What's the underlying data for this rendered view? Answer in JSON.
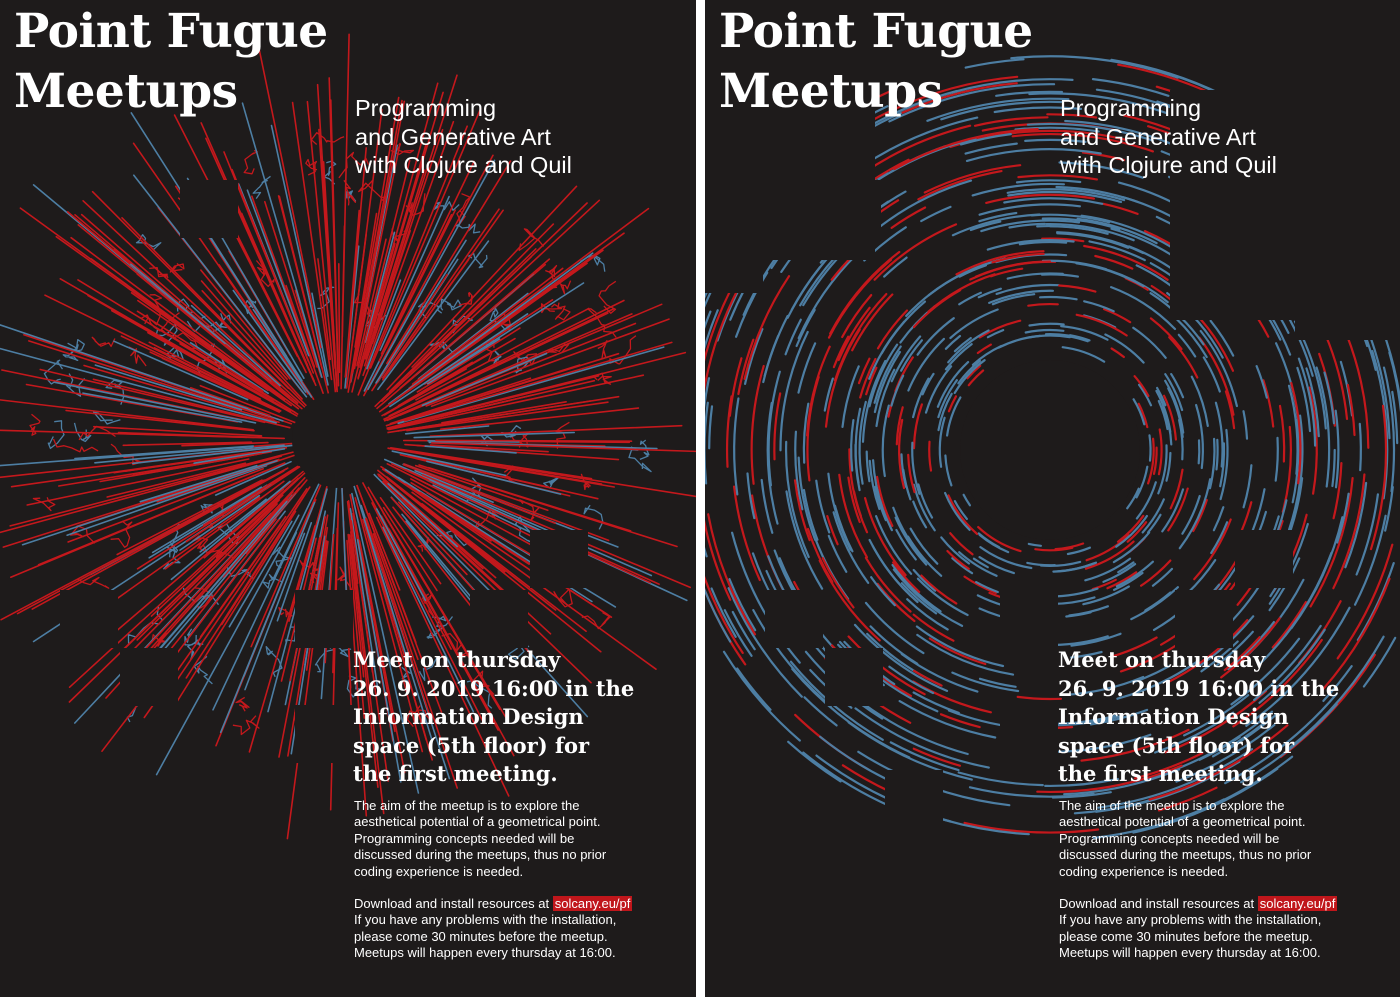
{
  "posters": [
    {
      "variant": "radial-burst",
      "title_lines": [
        "Point Fugue",
        "Meetups"
      ],
      "subtitle_lines": [
        "Programming",
        "and Generative Art",
        "with Clojure and Quil"
      ],
      "meet_lines": [
        "Meet on thursday",
        "26. 9. 2019 16:00 in the",
        "Information Design",
        "space (5th floor) for",
        "the first meeting."
      ],
      "aim_lines": [
        "The aim of the meetup is to explore the",
        "aesthetical potential of a geometrical point.",
        "Programming concepts needed will be",
        "discussed during the meetups, thus no prior",
        "coding experience is needed."
      ],
      "download_prefix": "Download and install resources at ",
      "download_link": "solcany.eu/pf",
      "info_lines": [
        "If you have any problems with the installation,",
        "please come 30 minutes before the meetup.",
        "Meetups will happen every thursday at 16:00."
      ]
    },
    {
      "variant": "swirl",
      "title_lines": [
        "Point Fugue",
        "Meetups"
      ],
      "subtitle_lines": [
        "Programming",
        "and Generative Art",
        "with Clojure and Quil"
      ],
      "meet_lines": [
        "Meet on thursday",
        "26. 9. 2019 16:00 in the",
        "Information Design",
        "space (5th floor) for",
        "the first meeting."
      ],
      "aim_lines": [
        "The aim of the meetup is to explore the",
        "aesthetical potential of a geometrical point.",
        "Programming concepts needed will be",
        "discussed during the meetups, thus no prior",
        "coding experience is needed."
      ],
      "download_prefix": "Download and install resources at ",
      "download_link": "solcany.eu/pf",
      "info_lines": [
        "If you have any problems with the installation,",
        "please come 30 minutes before the meetup.",
        "Meetups will happen every thursday at 16:00."
      ]
    }
  ],
  "colors": {
    "background": "#1e1b1b",
    "red": "#c4181c",
    "blue": "#4d7ea3",
    "text": "#ffffff",
    "page": "#ffffff"
  }
}
